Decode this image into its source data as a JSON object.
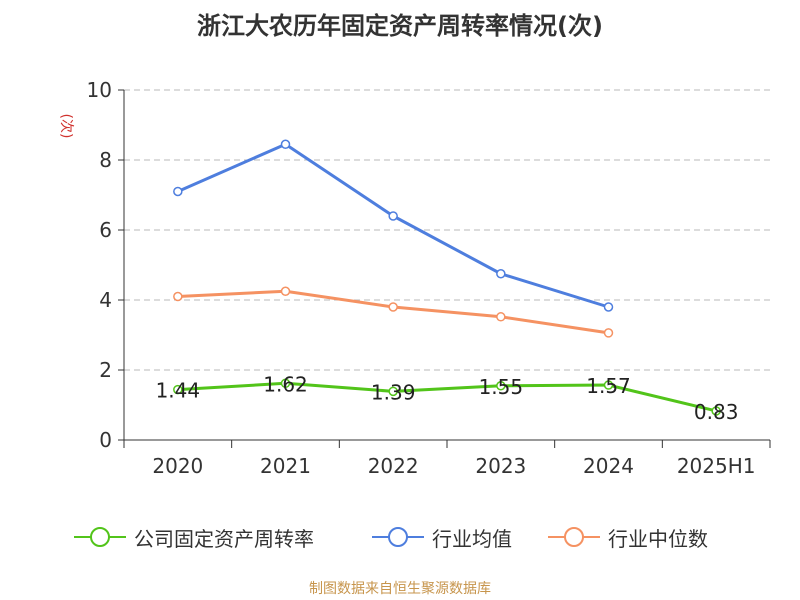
{
  "chart_data": {
    "type": "line",
    "title": "浙江大农历年固定资产周转率情况(次)",
    "ylabel": "(次)",
    "ylim": [
      0,
      10
    ],
    "yticks": [
      "0",
      "2",
      "4",
      "6",
      "8",
      "10"
    ],
    "categories": [
      "2020",
      "2021",
      "2022",
      "2023",
      "2024",
      "2025H1"
    ],
    "grid": "horizontal-dashed",
    "legend_position": "bottom",
    "series": [
      {
        "name": "公司固定资产周转率",
        "color": "#52c41a",
        "values": [
          1.44,
          1.62,
          1.39,
          1.55,
          1.57,
          0.83
        ],
        "labels": [
          "1.44",
          "1.62",
          "1.39",
          "1.55",
          "1.57",
          "0.83"
        ]
      },
      {
        "name": "行业均值",
        "color": "#4e7ede",
        "values": [
          7.1,
          8.45,
          6.4,
          4.75,
          3.8,
          null
        ]
      },
      {
        "name": "行业中位数",
        "color": "#f59262",
        "values": [
          4.1,
          4.25,
          3.8,
          3.52,
          3.06,
          null
        ]
      }
    ]
  },
  "source": "制图数据来自恒生聚源数据库"
}
